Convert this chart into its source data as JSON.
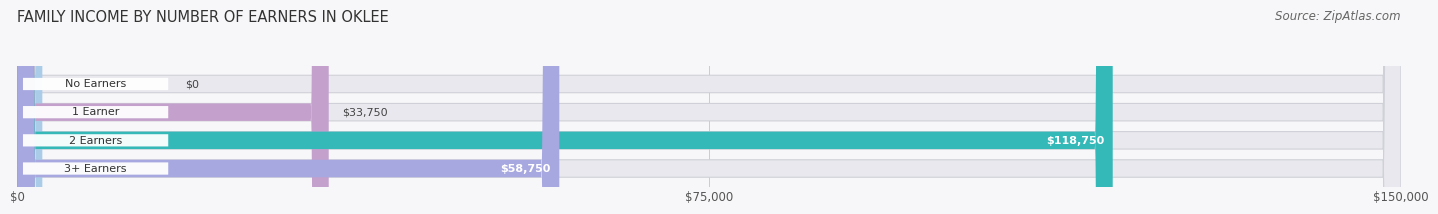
{
  "title": "FAMILY INCOME BY NUMBER OF EARNERS IN OKLEE",
  "source": "Source: ZipAtlas.com",
  "categories": [
    "No Earners",
    "1 Earner",
    "2 Earners",
    "3+ Earners"
  ],
  "values": [
    0,
    33750,
    118750,
    58750
  ],
  "labels": [
    "$0",
    "$33,750",
    "$118,750",
    "$58,750"
  ],
  "bar_colors": [
    "#aacce8",
    "#c4a0cc",
    "#35b8b8",
    "#a8a8e0"
  ],
  "bar_bg_color": "#e8e8ee",
  "bar_border_color": "#d0d0d8",
  "xlim": [
    0,
    150000
  ],
  "xticks": [
    0,
    75000,
    150000
  ],
  "xticklabels": [
    "$0",
    "$75,000",
    "$150,000"
  ],
  "title_fontsize": 10.5,
  "source_fontsize": 8.5,
  "label_color_dark": "#444444",
  "label_color_light": "#ffffff",
  "background_color": "#f7f7f9",
  "bar_height": 0.62,
  "value_inside_threshold": 0.25
}
